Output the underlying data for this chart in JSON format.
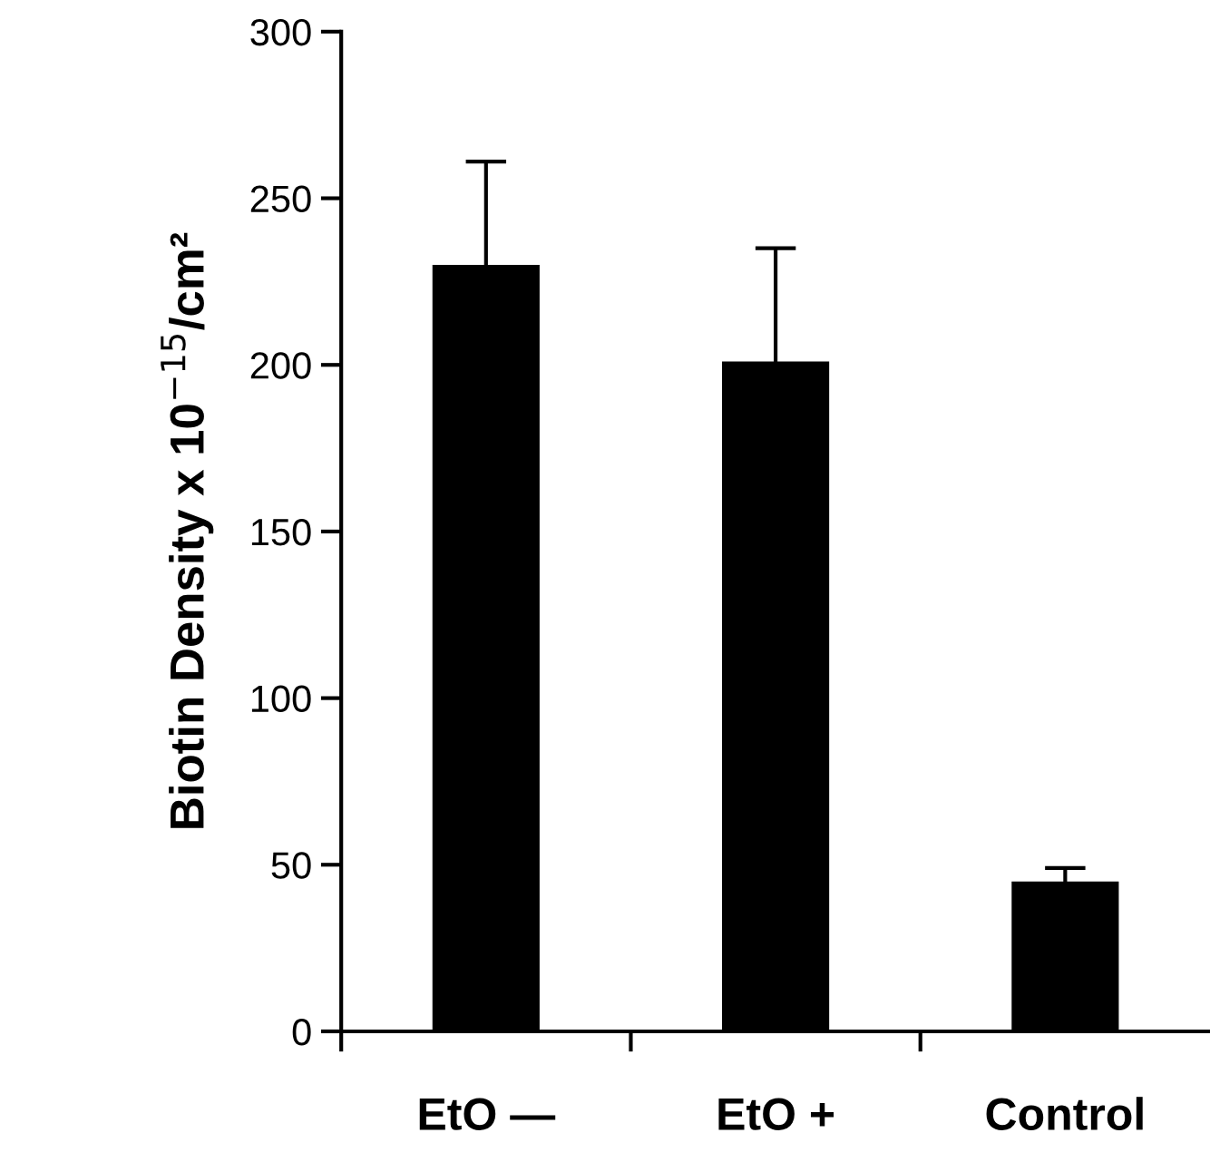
{
  "chart_data": {
    "type": "bar",
    "ylabel": "Biotin Density x 10$^{−15}$/cm²",
    "categories": [
      "EtO —",
      "EtO +",
      "Control"
    ],
    "values": [
      230,
      201,
      45
    ],
    "errors": [
      31,
      34,
      4
    ],
    "color": "#000000",
    "ylim": [
      0,
      300
    ],
    "yticks": [
      0,
      50,
      100,
      150,
      200,
      250,
      300
    ],
    "grid": false
  }
}
